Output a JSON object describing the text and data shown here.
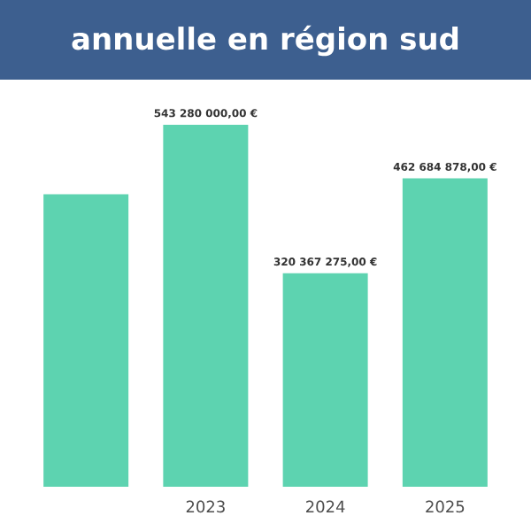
{
  "chart_data": {
    "type": "bar",
    "title": "annuelle en région sud",
    "categories": [
      null,
      "2023",
      "2024",
      "2025"
    ],
    "values": [
      439000000,
      543280000,
      320367275,
      462684878
    ],
    "color": "#5dd3b0",
    "value_labels": [
      null,
      "543 280 000,00  €",
      "320 367 275,00  €",
      "462 684 878,00  €"
    ]
  }
}
